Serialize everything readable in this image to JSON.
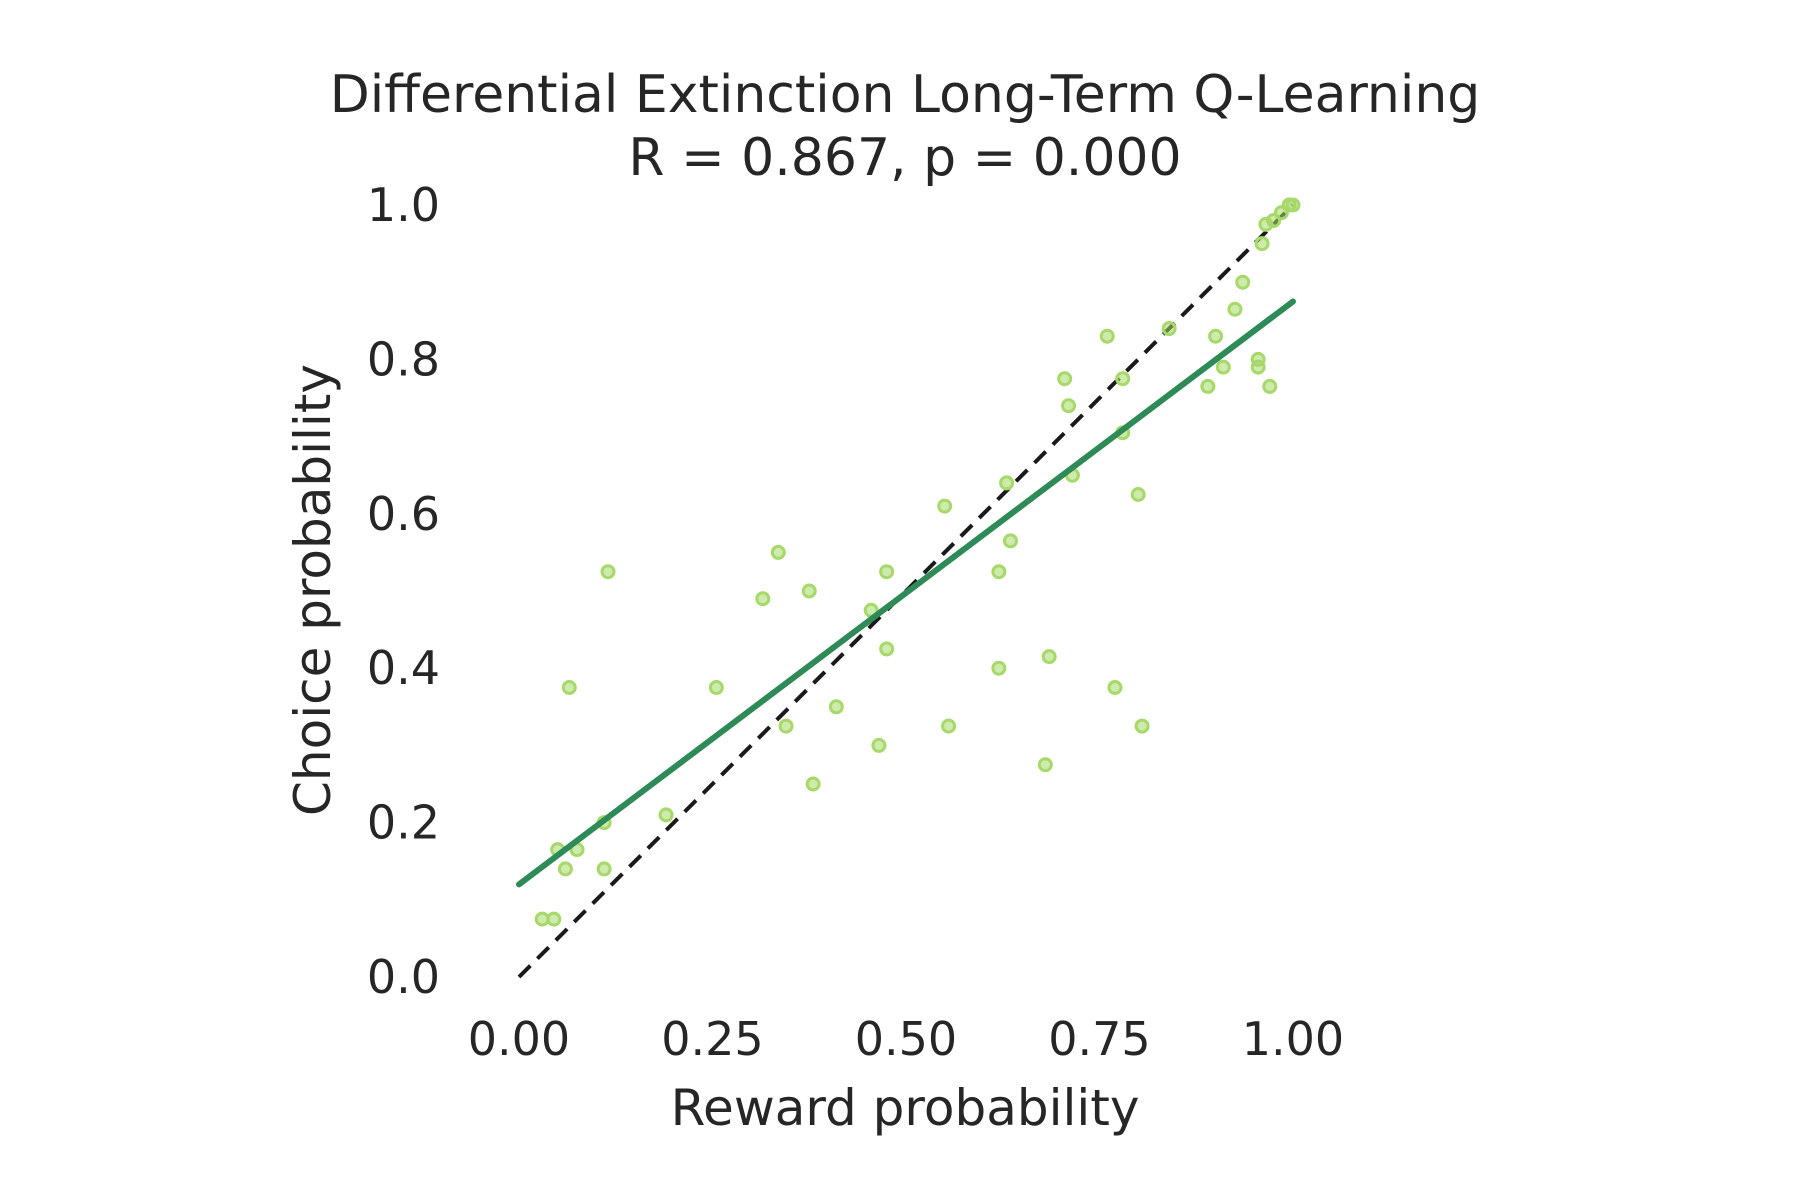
{
  "chart_data": {
    "type": "scatter",
    "title": "Differential Extinction Long-Term Q-Learning",
    "subtitle": "R = 0.867, p = 0.000",
    "xlabel": "Reward probability",
    "ylabel": "Choice probability",
    "xlim": [
      0,
      1
    ],
    "ylim": [
      0,
      1
    ],
    "x_ticks": [
      "0.00",
      "0.25",
      "0.50",
      "0.75",
      "1.00"
    ],
    "y_ticks": [
      "0.0",
      "0.2",
      "0.4",
      "0.6",
      "0.8",
      "1.0"
    ],
    "grid": false,
    "colors": {
      "points": "#a6d96a",
      "fit_line": "#2e8b57",
      "identity_line": "#1a1a1a"
    },
    "points": [
      {
        "x": 0.03,
        "y": 0.075
      },
      {
        "x": 0.045,
        "y": 0.075
      },
      {
        "x": 0.05,
        "y": 0.165
      },
      {
        "x": 0.06,
        "y": 0.14
      },
      {
        "x": 0.065,
        "y": 0.375
      },
      {
        "x": 0.075,
        "y": 0.165
      },
      {
        "x": 0.11,
        "y": 0.2
      },
      {
        "x": 0.11,
        "y": 0.14
      },
      {
        "x": 0.115,
        "y": 0.525
      },
      {
        "x": 0.19,
        "y": 0.21
      },
      {
        "x": 0.255,
        "y": 0.375
      },
      {
        "x": 0.315,
        "y": 0.49
      },
      {
        "x": 0.335,
        "y": 0.55
      },
      {
        "x": 0.345,
        "y": 0.325
      },
      {
        "x": 0.375,
        "y": 0.5
      },
      {
        "x": 0.38,
        "y": 0.25
      },
      {
        "x": 0.41,
        "y": 0.35
      },
      {
        "x": 0.455,
        "y": 0.475
      },
      {
        "x": 0.465,
        "y": 0.3
      },
      {
        "x": 0.475,
        "y": 0.525
      },
      {
        "x": 0.475,
        "y": 0.425
      },
      {
        "x": 0.55,
        "y": 0.61
      },
      {
        "x": 0.555,
        "y": 0.325
      },
      {
        "x": 0.62,
        "y": 0.525
      },
      {
        "x": 0.62,
        "y": 0.4
      },
      {
        "x": 0.63,
        "y": 0.64
      },
      {
        "x": 0.635,
        "y": 0.565
      },
      {
        "x": 0.68,
        "y": 0.275
      },
      {
        "x": 0.685,
        "y": 0.415
      },
      {
        "x": 0.705,
        "y": 0.775
      },
      {
        "x": 0.71,
        "y": 0.74
      },
      {
        "x": 0.715,
        "y": 0.65
      },
      {
        "x": 0.76,
        "y": 0.83
      },
      {
        "x": 0.77,
        "y": 0.375
      },
      {
        "x": 0.78,
        "y": 0.775
      },
      {
        "x": 0.78,
        "y": 0.705
      },
      {
        "x": 0.8,
        "y": 0.625
      },
      {
        "x": 0.805,
        "y": 0.325
      },
      {
        "x": 0.84,
        "y": 0.84
      },
      {
        "x": 0.89,
        "y": 0.765
      },
      {
        "x": 0.9,
        "y": 0.83
      },
      {
        "x": 0.91,
        "y": 0.79
      },
      {
        "x": 0.925,
        "y": 0.865
      },
      {
        "x": 0.935,
        "y": 0.9
      },
      {
        "x": 0.955,
        "y": 0.8
      },
      {
        "x": 0.955,
        "y": 0.79
      },
      {
        "x": 0.96,
        "y": 0.95
      },
      {
        "x": 0.965,
        "y": 0.975
      },
      {
        "x": 0.97,
        "y": 0.765
      },
      {
        "x": 0.975,
        "y": 0.98
      },
      {
        "x": 0.985,
        "y": 0.99
      },
      {
        "x": 0.995,
        "y": 1.0
      },
      {
        "x": 1.0,
        "y": 1.0
      }
    ],
    "fit_line": {
      "x": [
        0,
        1
      ],
      "y": [
        0.12,
        0.875
      ]
    },
    "identity_line": {
      "x": [
        0,
        1
      ],
      "y": [
        0,
        1
      ]
    }
  }
}
